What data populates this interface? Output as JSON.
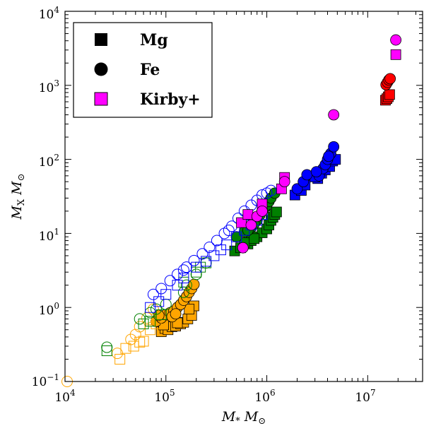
{
  "chart_data": {
    "type": "scatter",
    "xscale": "log",
    "yscale": "log",
    "xlim": [
      10000,
      35000000
    ],
    "ylim": [
      0.1,
      10000
    ],
    "xlabel": "M_* M_⊙",
    "ylabel": "M_X M_⊙",
    "xlabel_parts": {
      "main": "M",
      "sub": "*",
      "unit": "M",
      "unit_sub": "⊙"
    },
    "ylabel_parts": {
      "main": "M",
      "sub": "X",
      "unit": "M",
      "unit_sub": "⊙"
    },
    "xticks": [
      {
        "value": 10000,
        "base": "10",
        "exp": "4"
      },
      {
        "value": 100000,
        "base": "10",
        "exp": "5"
      },
      {
        "value": 1000000,
        "base": "10",
        "exp": "6"
      },
      {
        "value": 10000000,
        "base": "10",
        "exp": "7"
      }
    ],
    "yticks": [
      {
        "value": 0.1,
        "base": "10",
        "exp": "−1"
      },
      {
        "value": 1,
        "base": "10",
        "exp": "0"
      },
      {
        "value": 10,
        "base": "10",
        "exp": "1"
      },
      {
        "value": 100,
        "base": "10",
        "exp": "2"
      },
      {
        "value": 1000,
        "base": "10",
        "exp": "3"
      },
      {
        "value": 10000,
        "base": "10",
        "exp": "4"
      }
    ],
    "legend": {
      "position": "top-left",
      "entries": [
        {
          "label": "Mg",
          "marker": "square",
          "color": "#000000"
        },
        {
          "label": "Fe",
          "marker": "circle",
          "color": "#000000"
        },
        {
          "label": "Kirby+",
          "marker": "square",
          "color": "#ff00ff"
        }
      ]
    },
    "colors": {
      "orange": "#ffa500",
      "green": "#008000",
      "blue": "#0000ff",
      "red": "#ff0000",
      "magenta": "#ff00ff",
      "edge": "#000000"
    },
    "series": [
      {
        "name": "Mg orange (filled)",
        "marker": "square",
        "filled": true,
        "color": "#ffa500",
        "points": [
          [
            90000,
            0.47
          ],
          [
            98000,
            0.52
          ],
          [
            105000,
            0.5
          ],
          [
            115000,
            0.55
          ],
          [
            125000,
            0.56
          ],
          [
            140000,
            0.6
          ],
          [
            150000,
            0.63
          ],
          [
            165000,
            0.7
          ],
          [
            180000,
            0.78
          ],
          [
            190000,
            1.05
          ],
          [
            170000,
            0.95
          ],
          [
            95000,
            0.58
          ],
          [
            130000,
            0.62
          ]
        ]
      },
      {
        "name": "Fe orange (filled)",
        "marker": "circle",
        "filled": true,
        "color": "#ffa500",
        "points": [
          [
            80000,
            0.65
          ],
          [
            90000,
            0.72
          ],
          [
            100000,
            0.8
          ],
          [
            110000,
            0.85
          ],
          [
            120000,
            0.9
          ],
          [
            130000,
            1.0
          ],
          [
            140000,
            1.1
          ],
          [
            150000,
            1.25
          ],
          [
            160000,
            1.4
          ],
          [
            170000,
            1.6
          ],
          [
            180000,
            1.8
          ],
          [
            190000,
            2.05
          ],
          [
            85000,
            0.78
          ],
          [
            115000,
            0.75
          ],
          [
            125000,
            0.82
          ]
        ]
      },
      {
        "name": "Mg orange (open)",
        "marker": "square",
        "filled": false,
        "color": "#ffa500",
        "points": [
          [
            35000,
            0.2
          ],
          [
            40000,
            0.28
          ],
          [
            48000,
            0.3
          ],
          [
            55000,
            0.34
          ],
          [
            60000,
            0.35
          ],
          [
            70000,
            0.5
          ],
          [
            80000,
            0.6
          ]
        ]
      },
      {
        "name": "Fe orange (open)",
        "marker": "circle",
        "filled": false,
        "color": "#ffa500",
        "points": [
          [
            10500,
            0.1
          ],
          [
            33000,
            0.24
          ],
          [
            45000,
            0.37
          ],
          [
            50000,
            0.43
          ],
          [
            55000,
            0.55
          ],
          [
            65000,
            0.72
          ],
          [
            75000,
            0.95
          ]
        ]
      },
      {
        "name": "Mg green (filled)",
        "marker": "square",
        "filled": true,
        "color": "#008000",
        "points": [
          [
            480000,
            5.8
          ],
          [
            550000,
            6.4
          ],
          [
            650000,
            7.2
          ],
          [
            700000,
            8.0
          ],
          [
            800000,
            9.0
          ],
          [
            900000,
            10.2
          ],
          [
            1000000,
            11.5
          ],
          [
            1050000,
            13.0
          ],
          [
            1100000,
            15.0
          ],
          [
            1150000,
            16.5
          ],
          [
            1200000,
            18.0
          ],
          [
            1250000,
            19.5
          ],
          [
            600000,
            7.5
          ],
          [
            750000,
            8.5
          ]
        ]
      },
      {
        "name": "Fe green (filled)",
        "marker": "circle",
        "filled": true,
        "color": "#008000",
        "points": [
          [
            500000,
            9.0
          ],
          [
            600000,
            10.5
          ],
          [
            700000,
            12.0
          ],
          [
            800000,
            15.0
          ],
          [
            850000,
            17.5
          ],
          [
            900000,
            20.0
          ],
          [
            950000,
            22.0
          ],
          [
            1000000,
            24.0
          ],
          [
            1050000,
            27.0
          ],
          [
            1100000,
            30.0
          ],
          [
            1200000,
            35.0
          ],
          [
            650000,
            11.0
          ],
          [
            750000,
            13.5
          ]
        ]
      },
      {
        "name": "Mg green (open)",
        "marker": "square",
        "filled": false,
        "color": "#008000",
        "points": [
          [
            26000,
            0.26
          ],
          [
            60000,
            0.6
          ],
          [
            70000,
            0.65
          ],
          [
            90000,
            0.8
          ],
          [
            150000,
            2.2
          ],
          [
            200000,
            3.0
          ],
          [
            220000,
            3.5
          ],
          [
            250000,
            4.0
          ]
        ]
      },
      {
        "name": "Fe green (open)",
        "marker": "circle",
        "filled": false,
        "color": "#008000",
        "points": [
          [
            26000,
            0.29
          ],
          [
            55000,
            0.7
          ],
          [
            70000,
            0.85
          ],
          [
            80000,
            0.95
          ],
          [
            100000,
            1.1
          ],
          [
            150000,
            1.6
          ],
          [
            160000,
            2.0
          ],
          [
            200000,
            2.8
          ],
          [
            250000,
            4.0
          ]
        ]
      },
      {
        "name": "Mg blue (filled)",
        "marker": "square",
        "filled": true,
        "color": "#0000ff",
        "points": [
          [
            1900000,
            33.0
          ],
          [
            2200000,
            38.0
          ],
          [
            2400000,
            45.0
          ],
          [
            3200000,
            55.0
          ],
          [
            3500000,
            65.0
          ],
          [
            3800000,
            72.0
          ],
          [
            4200000,
            80.0
          ],
          [
            4500000,
            95.0
          ],
          [
            4800000,
            100.0
          ],
          [
            3000000,
            58.0
          ]
        ]
      },
      {
        "name": "Fe blue (filled)",
        "marker": "circle",
        "filled": true,
        "color": "#0000ff",
        "points": [
          [
            2000000,
            40.0
          ],
          [
            2300000,
            50.0
          ],
          [
            2500000,
            62.0
          ],
          [
            3300000,
            60.0
          ],
          [
            3600000,
            75.0
          ],
          [
            3800000,
            85.0
          ],
          [
            4000000,
            100.0
          ],
          [
            4300000,
            120.0
          ],
          [
            4600000,
            148.0
          ],
          [
            3100000,
            68.0
          ],
          [
            4100000,
            110.0
          ]
        ]
      },
      {
        "name": "Mg blue (open)",
        "marker": "square",
        "filled": false,
        "color": "#0000ff",
        "points": [
          [
            70000,
            1.0
          ],
          [
            85000,
            1.2
          ],
          [
            100000,
            1.5
          ],
          [
            130000,
            2.0
          ],
          [
            150000,
            2.5
          ],
          [
            200000,
            3.5
          ],
          [
            250000,
            4.2
          ],
          [
            300000,
            5.0
          ],
          [
            350000,
            6.0
          ],
          [
            400000,
            7.0
          ],
          [
            500000,
            9.0
          ],
          [
            600000,
            11.0
          ],
          [
            700000,
            13.0
          ],
          [
            800000,
            15.0
          ],
          [
            900000,
            18.0
          ]
        ]
      },
      {
        "name": "Fe blue (open)",
        "marker": "circle",
        "filled": false,
        "color": "#0000ff",
        "points": [
          [
            75000,
            1.5
          ],
          [
            90000,
            1.8
          ],
          [
            110000,
            2.3
          ],
          [
            130000,
            2.8
          ],
          [
            160000,
            3.5
          ],
          [
            190000,
            4.3
          ],
          [
            230000,
            5.3
          ],
          [
            270000,
            6.5
          ],
          [
            320000,
            8.0
          ],
          [
            380000,
            10.0
          ],
          [
            450000,
            12.5
          ],
          [
            520000,
            16.0
          ],
          [
            600000,
            20.0
          ],
          [
            700000,
            24.0
          ],
          [
            800000,
            28.0
          ],
          [
            900000,
            33.0
          ],
          [
            1000000,
            35.0
          ],
          [
            1100000,
            38.0
          ],
          [
            150000,
            3.2
          ],
          [
            420000,
            11.0
          ]
        ]
      },
      {
        "name": "Mg red (filled)",
        "marker": "square",
        "filled": true,
        "color": "#ff0000",
        "points": [
          [
            15000000,
            630.0
          ],
          [
            15500000,
            660.0
          ],
          [
            16000000,
            700.0
          ],
          [
            16500000,
            750.0
          ]
        ]
      },
      {
        "name": "Fe red (filled)",
        "marker": "circle",
        "filled": true,
        "color": "#ff0000",
        "points": [
          [
            15200000,
            1020.0
          ],
          [
            15700000,
            1100.0
          ],
          [
            16200000,
            1180.0
          ],
          [
            16700000,
            1230.0
          ]
        ]
      },
      {
        "name": "Kirby+ Mg",
        "marker": "square",
        "filled": true,
        "color": "#ff00ff",
        "points": [
          [
            560000,
            14.0
          ],
          [
            650000,
            18.0
          ],
          [
            900000,
            25.0
          ],
          [
            1400000,
            40.0
          ],
          [
            1500000,
            57.0
          ],
          [
            19000000,
            2600.0
          ]
        ]
      },
      {
        "name": "Kirby+ Fe",
        "marker": "circle",
        "filled": true,
        "color": "#ff00ff",
        "points": [
          [
            580000,
            6.4
          ],
          [
            700000,
            13.0
          ],
          [
            800000,
            17.0
          ],
          [
            900000,
            20.0
          ],
          [
            1500000,
            50.0
          ],
          [
            4600000,
            400.0
          ],
          [
            19000000,
            4100.0
          ]
        ]
      }
    ]
  }
}
